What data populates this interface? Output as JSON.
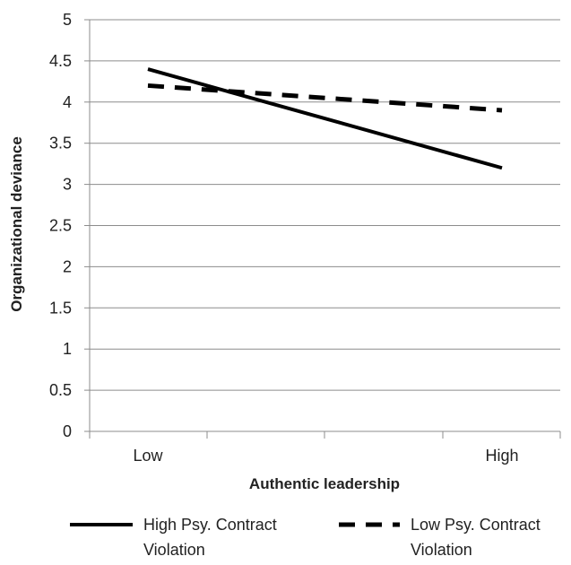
{
  "chart_data": {
    "type": "line",
    "title": "",
    "xlabel": "Authentic leadership",
    "ylabel": "Organizational deviance",
    "categories": [
      "Low",
      "High"
    ],
    "ylim": [
      0,
      5
    ],
    "yticks": [
      "0",
      "0.5",
      "1",
      "1.5",
      "2",
      "2.5",
      "3",
      "3.5",
      "4",
      "4.5",
      "5"
    ],
    "grid": "horizontal",
    "legend_position": "bottom",
    "series": [
      {
        "name_lines": [
          "High Psy. Contract",
          "Violation"
        ],
        "values": [
          4.4,
          3.2
        ],
        "style": "solid",
        "color": "#000000"
      },
      {
        "name_lines": [
          "Low Psy. Contract",
          "Violation"
        ],
        "values": [
          4.2,
          3.9
        ],
        "style": "dashed",
        "color": "#000000"
      }
    ]
  },
  "colors": {
    "grid": "#8c8c8c",
    "axis": "#8c8c8c",
    "line": "#000000"
  }
}
